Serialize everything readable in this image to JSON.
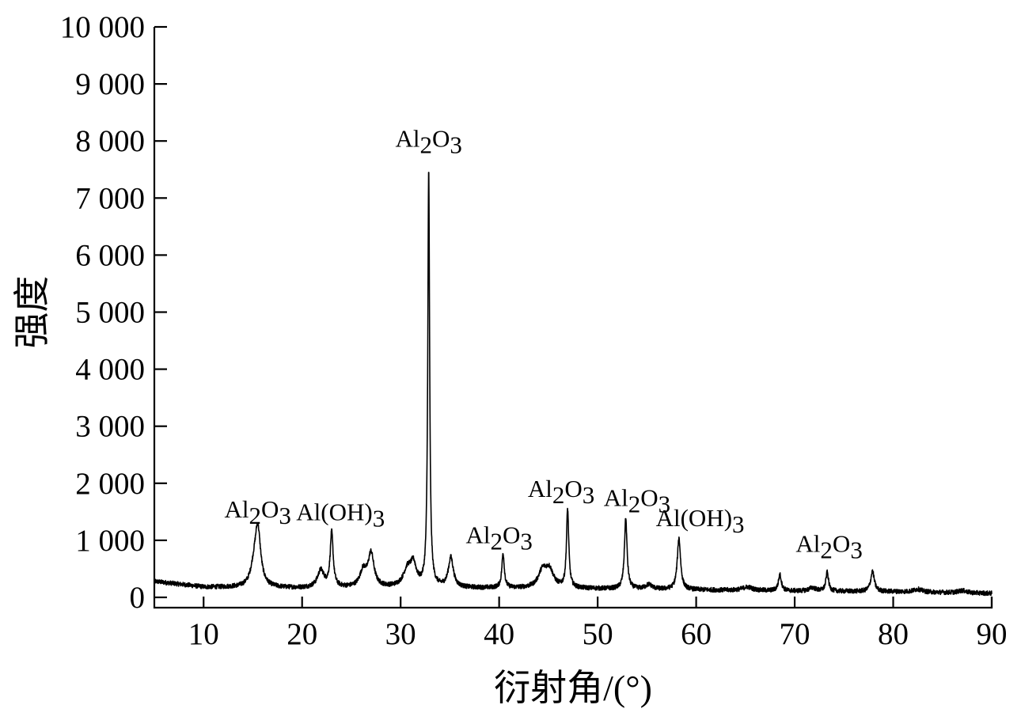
{
  "chart_data": {
    "type": "line",
    "xlabel": "衍射角/(°)",
    "ylabel": "强度",
    "xlim": [
      5,
      90
    ],
    "ylim": [
      0,
      10000
    ],
    "xticks": [
      10,
      20,
      30,
      40,
      50,
      60,
      70,
      80,
      90
    ],
    "yticks": [
      {
        "value": 0,
        "label": "0"
      },
      {
        "value": 1000,
        "label": "1 000"
      },
      {
        "value": 2000,
        "label": "2 000"
      },
      {
        "value": 3000,
        "label": "3 000"
      },
      {
        "value": 4000,
        "label": "4 000"
      },
      {
        "value": 5000,
        "label": "5 000"
      },
      {
        "value": 6000,
        "label": "6 000"
      },
      {
        "value": 7000,
        "label": "7 000"
      },
      {
        "value": 8000,
        "label": "8 000"
      },
      {
        "value": 9000,
        "label": "9 000"
      },
      {
        "value": 10000,
        "label": "10 000"
      }
    ],
    "grid": false,
    "baseline": [
      [
        5,
        280
      ],
      [
        10,
        180
      ],
      [
        20,
        160
      ],
      [
        30,
        170
      ],
      [
        40,
        160
      ],
      [
        50,
        150
      ],
      [
        60,
        130
      ],
      [
        70,
        110
      ],
      [
        80,
        100
      ],
      [
        90,
        70
      ]
    ],
    "peaks": [
      {
        "x": 15.5,
        "height": 1000,
        "width": 0.35
      },
      {
        "x": 15.1,
        "height": 250,
        "width": 0.4
      },
      {
        "x": 21.9,
        "height": 300,
        "width": 0.4
      },
      {
        "x": 23.0,
        "height": 950,
        "width": 0.18
      },
      {
        "x": 26.2,
        "height": 280,
        "width": 0.4
      },
      {
        "x": 27.0,
        "height": 580,
        "width": 0.35
      },
      {
        "x": 30.7,
        "height": 300,
        "width": 0.5
      },
      {
        "x": 31.3,
        "height": 350,
        "width": 0.35
      },
      {
        "x": 32.85,
        "height": 7280,
        "width": 0.11
      },
      {
        "x": 35.1,
        "height": 520,
        "width": 0.3
      },
      {
        "x": 40.4,
        "height": 600,
        "width": 0.15
      },
      {
        "x": 44.4,
        "height": 280,
        "width": 0.5
      },
      {
        "x": 45.1,
        "height": 300,
        "width": 0.5
      },
      {
        "x": 46.95,
        "height": 1370,
        "width": 0.14
      },
      {
        "x": 52.85,
        "height": 1230,
        "width": 0.16
      },
      {
        "x": 55.2,
        "height": 80,
        "width": 0.4
      },
      {
        "x": 58.25,
        "height": 900,
        "width": 0.2
      },
      {
        "x": 65.2,
        "height": 60,
        "width": 0.6
      },
      {
        "x": 68.5,
        "height": 280,
        "width": 0.18
      },
      {
        "x": 71.8,
        "height": 60,
        "width": 0.4
      },
      {
        "x": 73.3,
        "height": 330,
        "width": 0.16
      },
      {
        "x": 77.9,
        "height": 350,
        "width": 0.22
      },
      {
        "x": 82.5,
        "height": 50,
        "width": 0.5
      },
      {
        "x": 87.0,
        "height": 40,
        "width": 0.5
      }
    ],
    "noise_amplitude": 40,
    "annotations": [
      {
        "text": "Al2O3",
        "main": "Al",
        "sub1": "2",
        "mid": "O",
        "sub2": "3",
        "x": 15.5,
        "y": 1400
      },
      {
        "text": "Al(OH)3",
        "main": "Al(OH)",
        "sub1": "3",
        "mid": "",
        "sub2": "",
        "x": 23.9,
        "y": 1350
      },
      {
        "text": "Al2O3",
        "main": "Al",
        "sub1": "2",
        "mid": "O",
        "sub2": "3",
        "x": 32.85,
        "y": 7900
      },
      {
        "text": "Al2O3",
        "main": "Al",
        "sub1": "2",
        "mid": "O",
        "sub2": "3",
        "x": 40.0,
        "y": 950
      },
      {
        "text": "Al2O3",
        "main": "Al",
        "sub1": "2",
        "mid": "O",
        "sub2": "3",
        "x": 46.3,
        "y": 1760
      },
      {
        "text": "Al2O3",
        "main": "Al",
        "sub1": "2",
        "mid": "O",
        "sub2": "3",
        "x": 54.0,
        "y": 1600
      },
      {
        "text": "Al(OH)3",
        "main": "Al(OH)",
        "sub1": "3",
        "mid": "",
        "sub2": "",
        "x": 60.4,
        "y": 1250
      },
      {
        "text": "Al2O3",
        "main": "Al",
        "sub1": "2",
        "mid": "O",
        "sub2": "3",
        "x": 73.5,
        "y": 800
      }
    ]
  }
}
